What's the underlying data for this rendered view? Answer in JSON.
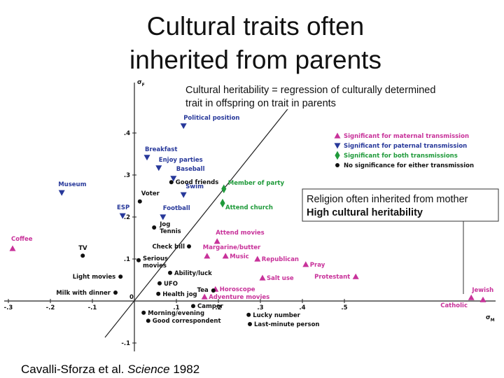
{
  "title": [
    "Cultural traits often",
    "inherited from parents"
  ],
  "annotation": [
    "Cultural heritability = regression of culturally determined",
    "trait in offspring on trait in parents"
  ],
  "callout": [
    "Religion often inherited from mother",
    "High cultural heritability"
  ],
  "citation": {
    "authors": "Cavalli-Sforza et al.",
    "journal": "Science",
    "year": "1982"
  },
  "chart_data": {
    "type": "scatter",
    "xlabel": [
      "σ",
      "M"
    ],
    "ylabel": [
      "σ",
      "F"
    ],
    "xlim": [
      -0.31,
      0.86
    ],
    "ylim": [
      -0.12,
      0.52
    ],
    "xticks": [
      {
        "value": -0.3,
        "label": "-.3"
      },
      {
        "value": -0.2,
        "label": "-.2"
      },
      {
        "value": -0.1,
        "label": "-.1"
      },
      0,
      {
        "value": 0.1,
        "label": ".1"
      },
      {
        "value": 0.2,
        "label": ".2"
      },
      {
        "value": 0.3,
        "label": ".3"
      },
      {
        "value": 0.4,
        "label": ".4"
      },
      {
        "value": 0.5,
        "label": ".5"
      }
    ],
    "yticks": [
      {
        "value": 0.4,
        "label": ".4"
      },
      {
        "value": 0.3,
        "label": ".3"
      },
      {
        "value": 0.2,
        "label": ".2"
      },
      {
        "value": 0.1,
        "label": ".1"
      },
      {
        "value": -0.1,
        "label": "-.1"
      }
    ],
    "legend": "upper right",
    "series": [
      {
        "name": "Significant for maternal transmission",
        "color": "#c8329a",
        "marker": "triangle-up",
        "x": [
          -0.29,
          0.197,
          0.173,
          0.217,
          0.293,
          0.408,
          0.527,
          0.305,
          0.193,
          0.167,
          0.802,
          0.83
        ],
        "y": [
          0.125,
          0.142,
          0.107,
          0.107,
          0.1,
          0.087,
          0.058,
          0.055,
          0.028,
          0.01,
          0.008,
          0.003
        ],
        "labels": [
          "Coffee",
          "Attend movies",
          "Margarine/butter",
          "Music",
          "Republican",
          "Pray",
          "Protestant",
          "Salt use",
          "Horoscope",
          "Adventure movies",
          "Jewish",
          "Catholic"
        ]
      },
      {
        "name": "Significant for paternal transmission",
        "color": "#27389a",
        "marker": "triangle-down",
        "x": [
          0.117,
          0.03,
          0.058,
          0.093,
          -0.173,
          0.117,
          -0.028,
          0.068
        ],
        "y": [
          0.417,
          0.342,
          0.317,
          0.292,
          0.258,
          0.253,
          0.203,
          0.2
        ],
        "labels": [
          "Political position",
          "Breakfast",
          "Enjoy parties",
          "Baseball",
          "Museum",
          "Swim",
          "ESP",
          "Football"
        ]
      },
      {
        "name": "Significant for both transmissions",
        "color": "#1f9a3a",
        "marker": "diamond",
        "x": [
          0.213,
          0.21
        ],
        "y": [
          0.267,
          0.233
        ],
        "labels": [
          "Member of party",
          "Attend church"
        ]
      },
      {
        "name": "No significance for either transmission",
        "color": "#111111",
        "marker": "circle",
        "x": [
          0.088,
          0.013,
          0.047,
          -0.123,
          0.13,
          0.01,
          0.085,
          -0.033,
          0.06,
          0.057,
          0.188,
          -0.045,
          0.14,
          0.022,
          0.033,
          0.272,
          0.275
        ],
        "y": [
          0.283,
          0.237,
          0.175,
          0.108,
          0.13,
          0.097,
          0.067,
          0.058,
          0.042,
          0.017,
          0.025,
          0.02,
          -0.012,
          -0.028,
          -0.047,
          -0.033,
          -0.055
        ],
        "labels": [
          "Good friends",
          "Voter",
          [
            "Jog",
            "Tennis"
          ],
          "TV",
          "Check bill",
          [
            "Serious",
            "movies"
          ],
          "Ability/luck",
          "Light movies",
          "UFO",
          "Health jog",
          "Tea",
          "Milk with dinner",
          "Camper",
          "Morning/evening",
          "Good correspondent",
          "Lucky number",
          "Last-minute person"
        ]
      }
    ]
  }
}
